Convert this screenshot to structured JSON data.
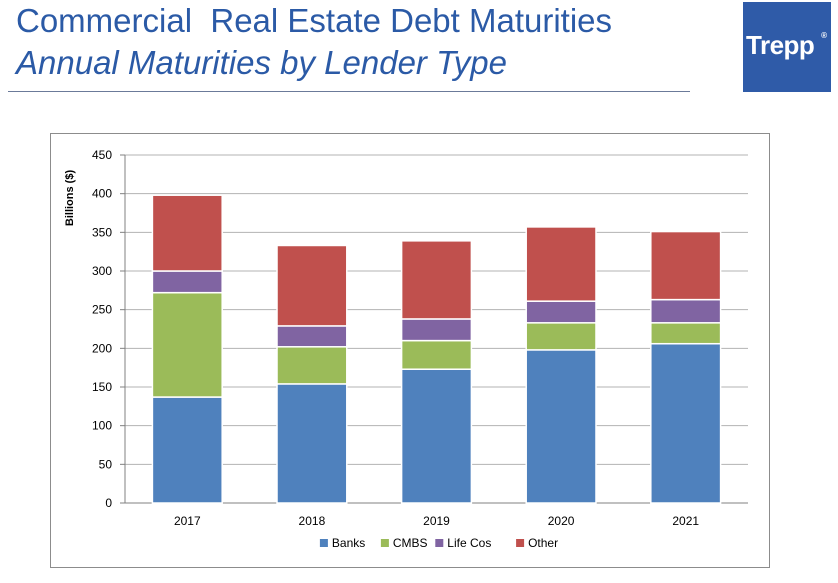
{
  "header": {
    "title_line1": "Commercial  Real Estate Debt Maturities",
    "title_line2": "Annual Maturities by Lender Type",
    "logo_text": "Trepp",
    "logo_mark": "®"
  },
  "colors": {
    "title": "#2b5aa6",
    "logo_bg": "#2f5ba8",
    "banks": "#4f81bd",
    "cmbs": "#9bbb59",
    "life_cos": "#8064a2",
    "other": "#c0504d"
  },
  "chart_data": {
    "type": "bar",
    "stacked": true,
    "title": "",
    "xlabel": "",
    "ylabel": "Billions ($)",
    "ylim": [
      0,
      450
    ],
    "yticks": [
      0,
      50,
      100,
      150,
      200,
      250,
      300,
      350,
      400,
      450
    ],
    "grid": true,
    "legend_position": "bottom",
    "categories": [
      "2017",
      "2018",
      "2019",
      "2020",
      "2021"
    ],
    "series": [
      {
        "name": "Banks",
        "color": "#4f81bd",
        "values": [
          137,
          154,
          173,
          198,
          206
        ]
      },
      {
        "name": "CMBS",
        "color": "#9bbb59",
        "values": [
          135,
          48,
          37,
          35,
          27
        ]
      },
      {
        "name": "Life Cos",
        "color": "#8064a2",
        "values": [
          28,
          27,
          28,
          28,
          30
        ]
      },
      {
        "name": "Other",
        "color": "#c0504d",
        "values": [
          98,
          104,
          101,
          96,
          88
        ]
      }
    ]
  }
}
